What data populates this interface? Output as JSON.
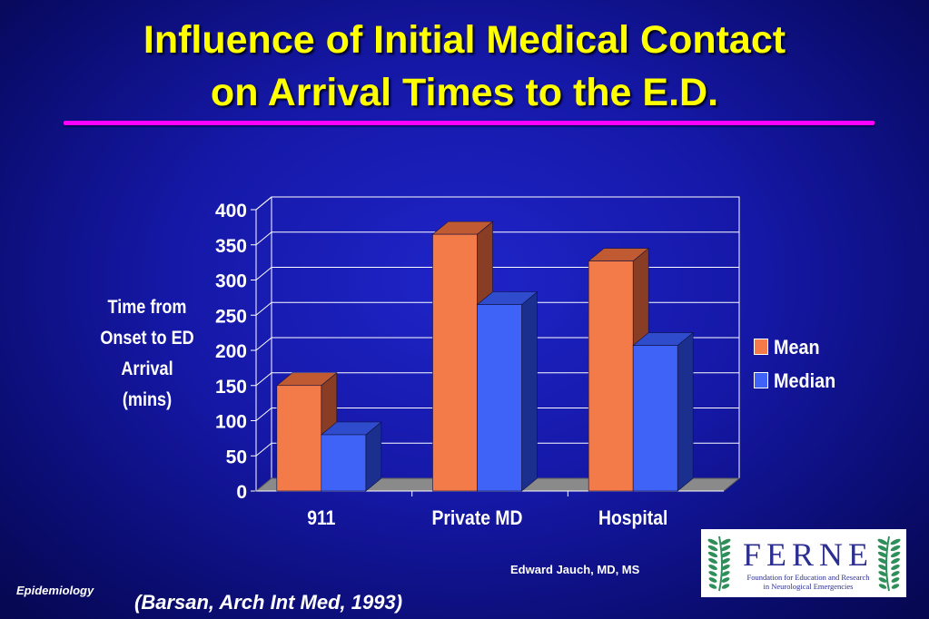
{
  "slide": {
    "title_line1": "Influence of Initial Medical Contact",
    "title_line2": "on Arrival Times to the E.D.",
    "author": "Edward Jauch, MD, MS",
    "section": "Epidemiology",
    "citation": "(Barsan, Arch Int Med, 1993)",
    "logo": {
      "wordmark": "FERNE",
      "tagline_line1": "Foundation for Education and Research",
      "tagline_line2": "in Neurological Emergencies"
    }
  },
  "colors": {
    "title": "#ffff00",
    "rule": "#ff00ff",
    "mean_front": "#f37b4a",
    "mean_side": "#8a3d25",
    "mean_top": "#c05a33",
    "median_front": "#3f63f7",
    "median_side": "#1b2f8e",
    "median_top": "#2f4ccc",
    "grid": "#ffffff",
    "floor": "#8a8a8a",
    "logo_green": "#2f8f5a",
    "logo_text": "#2b2f8f"
  },
  "chart_data": {
    "type": "bar",
    "categories": [
      "911",
      "Private MD",
      "Hospital"
    ],
    "series": [
      {
        "name": "Mean",
        "values": [
          150,
          365,
          327
        ]
      },
      {
        "name": "Median",
        "values": [
          80,
          265,
          207
        ]
      }
    ],
    "ylabel": [
      "Time from",
      "Onset to ED",
      "Arrival",
      "(mins)"
    ],
    "ylim": [
      0,
      400
    ],
    "yticks": [
      0,
      50,
      100,
      150,
      200,
      250,
      300,
      350,
      400
    ],
    "grid": true,
    "legend_position": "right",
    "style": "3d-clustered-column"
  }
}
